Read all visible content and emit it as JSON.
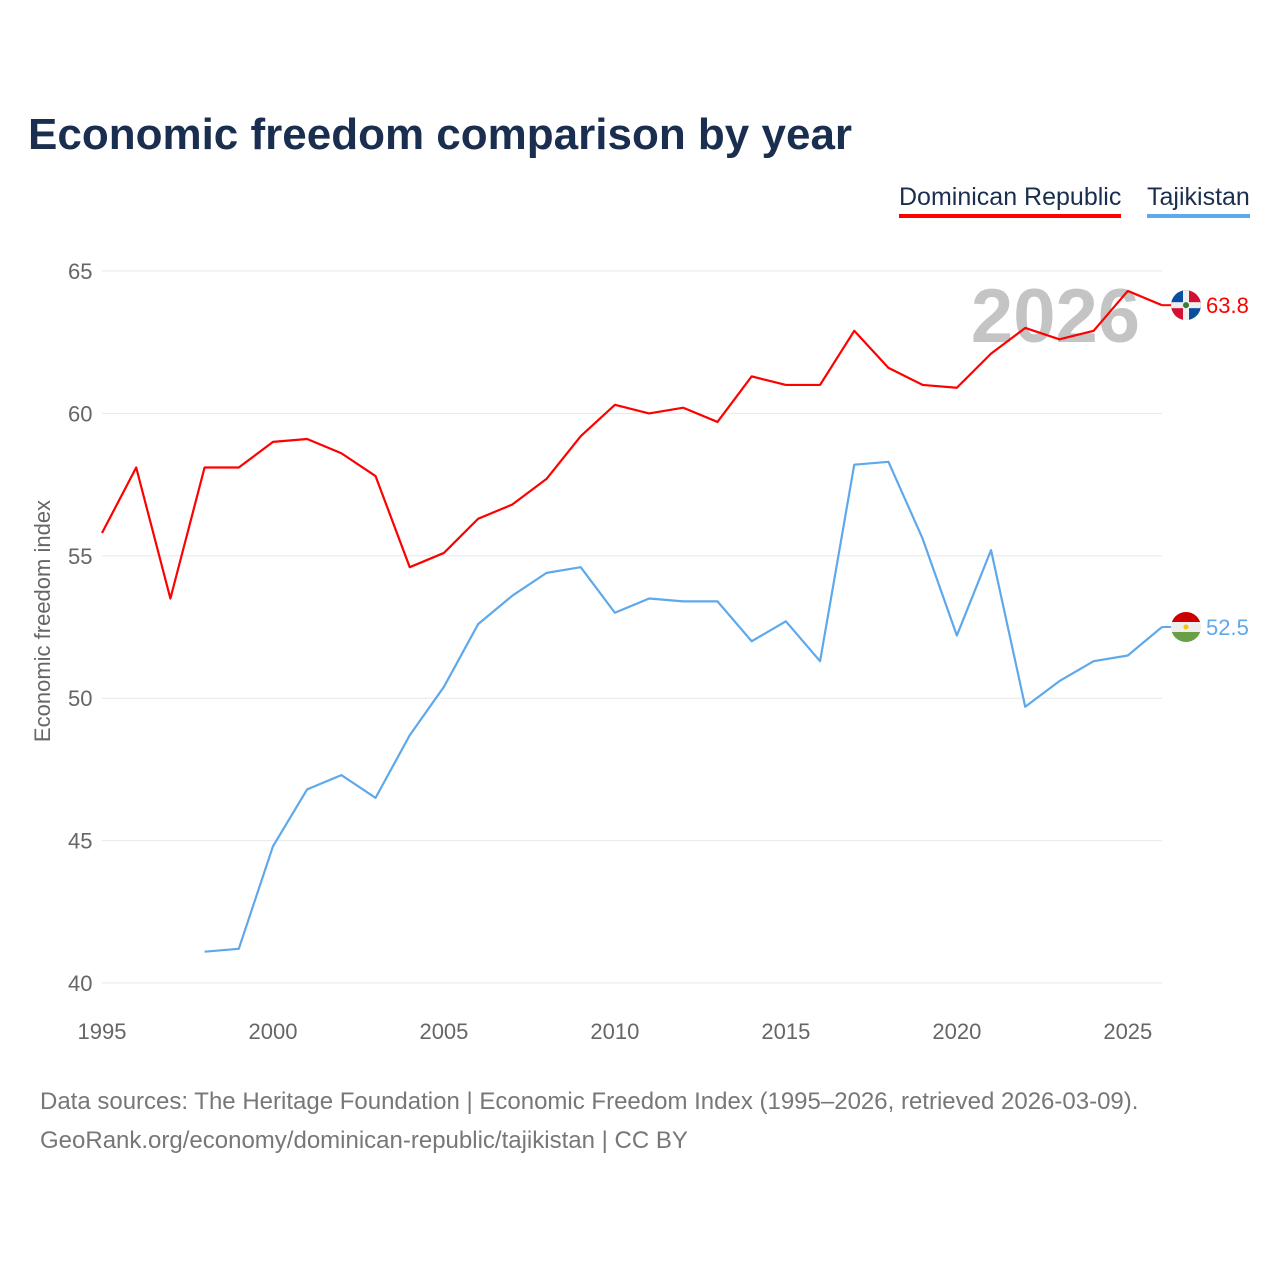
{
  "title": "Economic freedom comparison by year",
  "legend": [
    "Dominican Republic",
    "Tajikistan"
  ],
  "footer": {
    "sources": "Data sources: The Heritage Foundation | Economic Freedom Index (1995–2026, retrieved 2026-03-09).",
    "credit": "GeoRank.org/economy/dominican-republic/tajikistan | CC BY"
  },
  "chart_data": {
    "type": "line",
    "title": "Economic freedom comparison by year",
    "xlabel": "",
    "ylabel": "Economic freedom index",
    "xlim": [
      1995,
      2026
    ],
    "ylim": [
      40,
      65
    ],
    "xticks": [
      1995,
      2000,
      2005,
      2010,
      2015,
      2020,
      2025
    ],
    "yticks": [
      40,
      45,
      50,
      55,
      60,
      65
    ],
    "grid": true,
    "legend_position": "top-right",
    "year_watermark": "2026",
    "series": [
      {
        "name": "Dominican Republic",
        "color": "#ff0000",
        "end_label": "63.8",
        "x": [
          1995,
          1996,
          1997,
          1998,
          1999,
          2000,
          2001,
          2002,
          2003,
          2004,
          2005,
          2006,
          2007,
          2008,
          2009,
          2010,
          2011,
          2012,
          2013,
          2014,
          2015,
          2016,
          2017,
          2018,
          2019,
          2020,
          2021,
          2022,
          2023,
          2024,
          2025,
          2026
        ],
        "values": [
          55.8,
          58.1,
          53.5,
          58.1,
          58.1,
          59.0,
          59.1,
          58.6,
          57.8,
          54.6,
          55.1,
          56.3,
          56.8,
          57.7,
          59.2,
          60.3,
          60.0,
          60.2,
          59.7,
          61.3,
          61.0,
          61.0,
          62.9,
          61.6,
          61.0,
          60.9,
          62.1,
          63.0,
          62.6,
          62.9,
          64.3,
          63.8
        ]
      },
      {
        "name": "Tajikistan",
        "color": "#5ea8ec",
        "end_label": "52.5",
        "x": [
          1998,
          1999,
          2000,
          2001,
          2002,
          2003,
          2004,
          2005,
          2006,
          2007,
          2008,
          2009,
          2010,
          2011,
          2012,
          2013,
          2014,
          2015,
          2016,
          2017,
          2018,
          2019,
          2020,
          2021,
          2022,
          2023,
          2024,
          2025,
          2026
        ],
        "values": [
          41.1,
          41.2,
          44.8,
          46.8,
          47.3,
          46.5,
          48.7,
          50.4,
          52.6,
          53.6,
          54.4,
          54.6,
          53.0,
          53.5,
          53.4,
          53.4,
          52.0,
          52.7,
          51.3,
          58.2,
          58.3,
          55.6,
          52.2,
          55.2,
          49.7,
          50.6,
          51.3,
          51.5,
          52.5
        ]
      }
    ]
  }
}
